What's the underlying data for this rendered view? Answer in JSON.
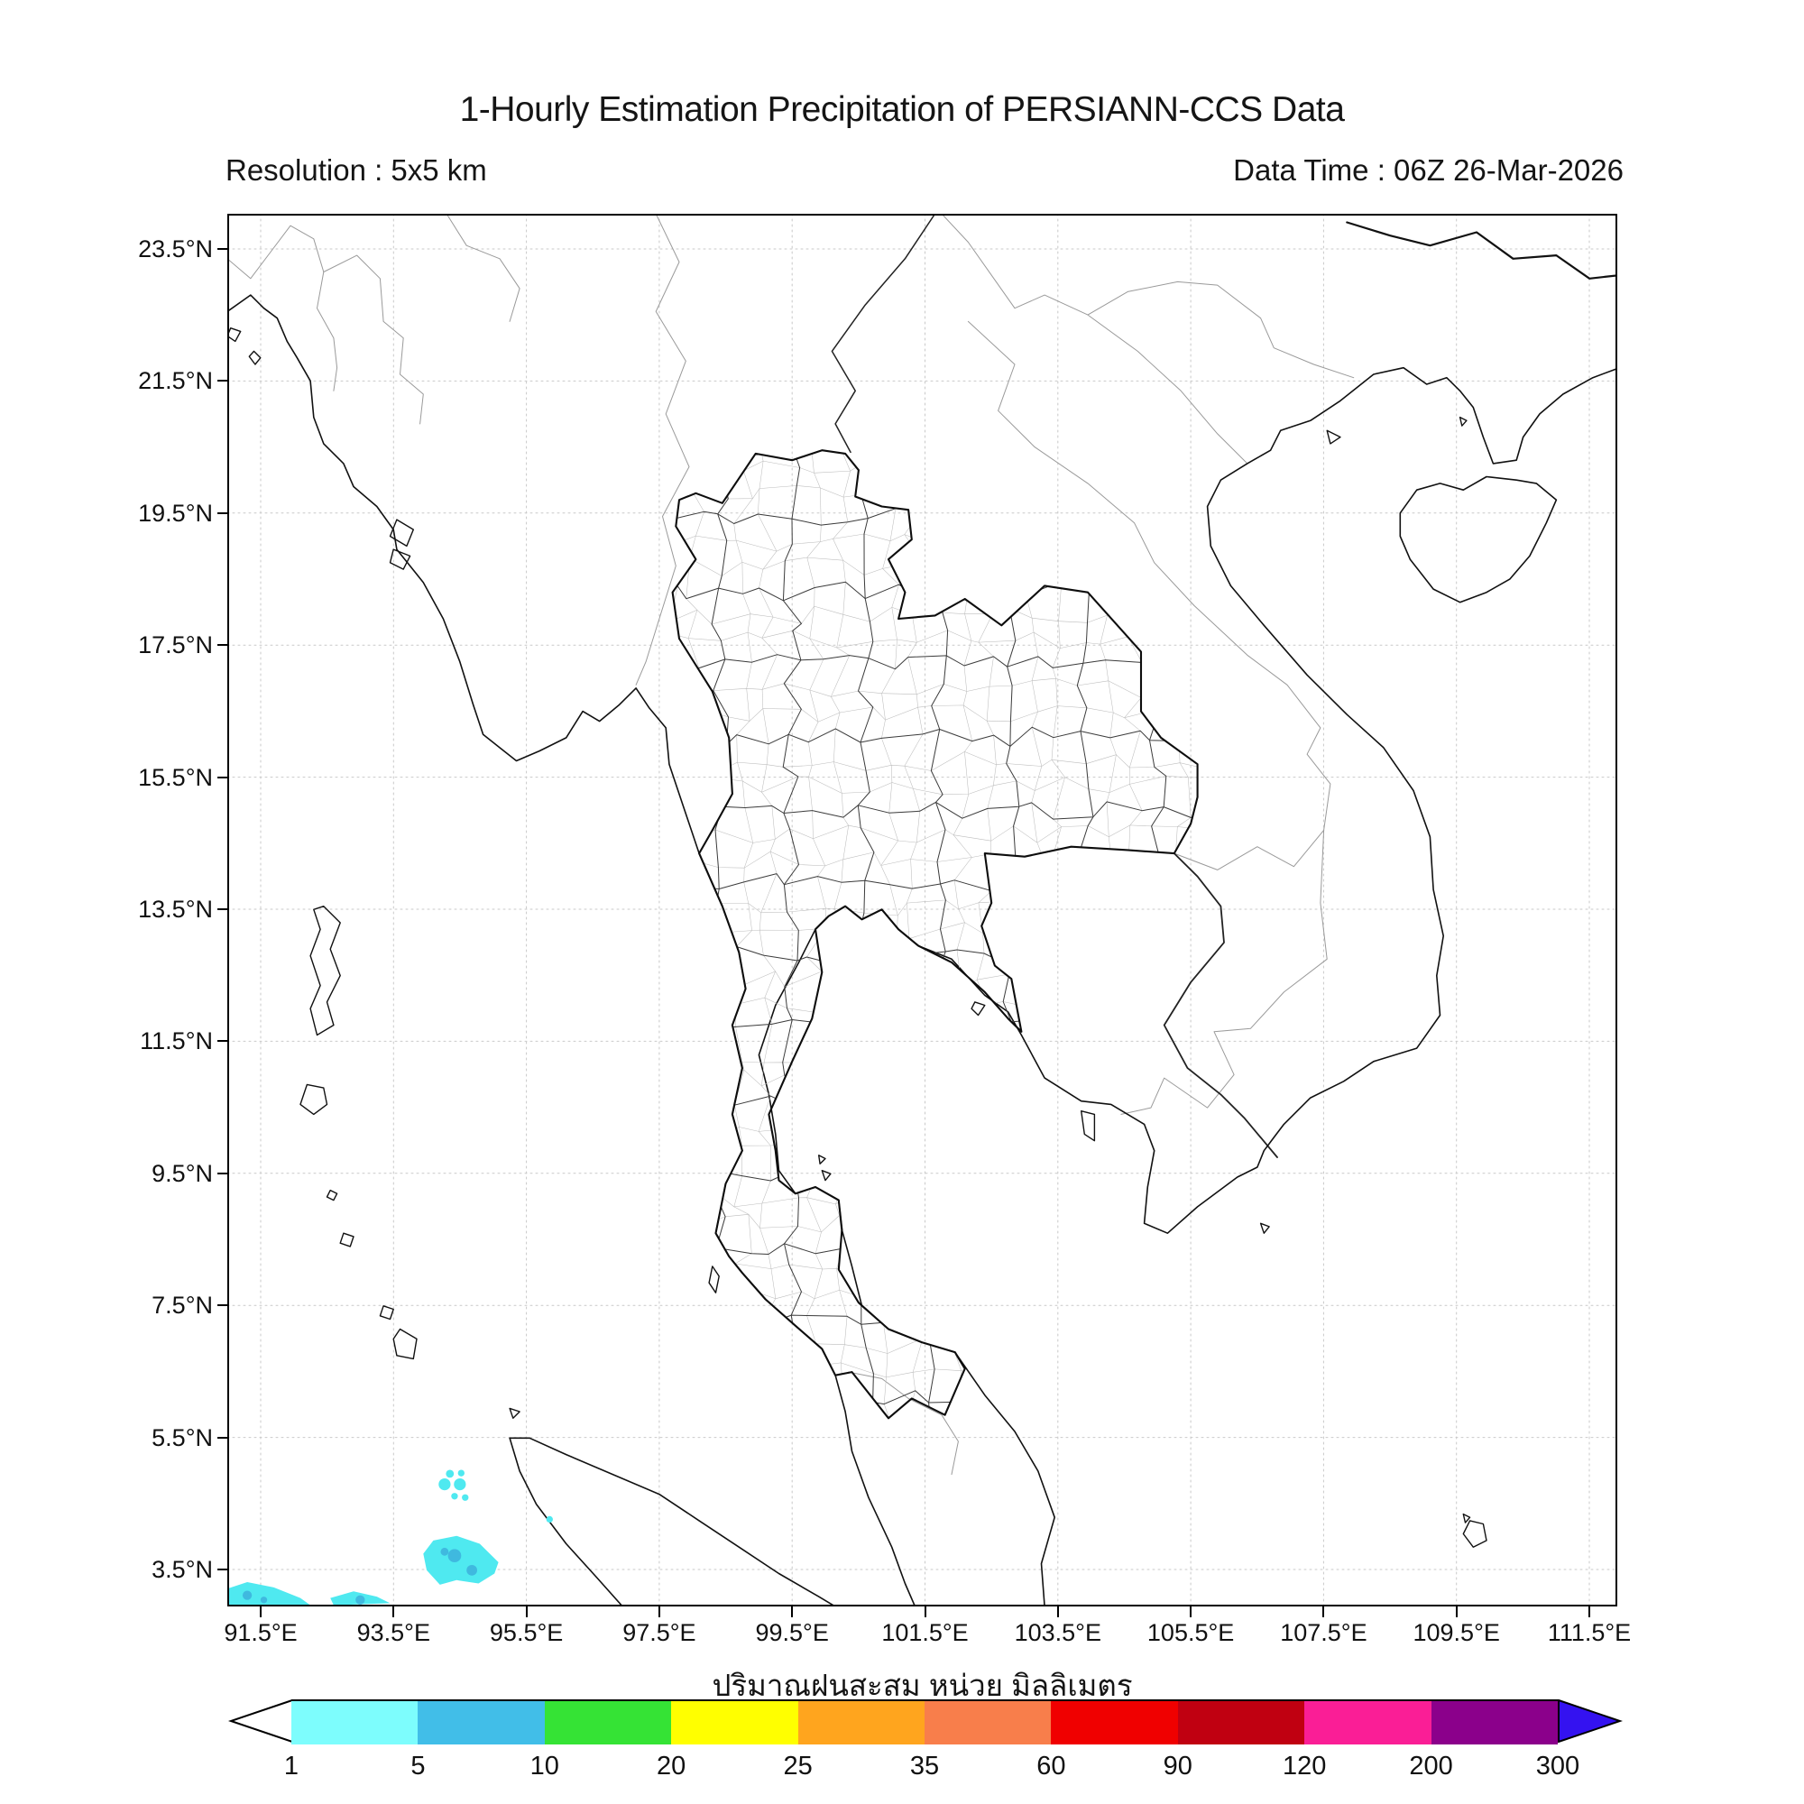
{
  "header": {
    "title": "1-Hourly Estimation Precipitation of PERSIANN-CCS Data",
    "resolution_label": "Resolution : 5x5 km",
    "datatime_label": "Data Time : 06Z 26-Mar-2026"
  },
  "map": {
    "y_axis_ticks": [
      "23.5°N",
      "21.5°N",
      "19.5°N",
      "17.5°N",
      "15.5°N",
      "13.5°N",
      "11.5°N",
      "9.5°N",
      "7.5°N",
      "5.5°N",
      "3.5°N"
    ],
    "x_axis_ticks": [
      "91.5°E",
      "93.5°E",
      "95.5°E",
      "97.5°E",
      "99.5°E",
      "101.5°E",
      "103.5°E",
      "105.5°E",
      "107.5°E",
      "109.5°E",
      "111.5°E"
    ],
    "grid": "on"
  },
  "colorbar": {
    "axis_title_thai": "ปริมาณฝนสะสม หน่วย มิลลิเมตร",
    "tick_labels": [
      "1",
      "5",
      "10",
      "20",
      "25",
      "35",
      "60",
      "90",
      "120",
      "200",
      "300"
    ],
    "segment_colors": [
      "#7DFDFD",
      "#41BEE8",
      "#35E335",
      "#FFFF00",
      "#FFA51E",
      "#F87E4B",
      "#F00000",
      "#C00011",
      "#FA1E96",
      "#8B008B"
    ],
    "under_arrow_color": "#FFFFFF",
    "over_arrow_color": "#3412F0"
  },
  "chart_data": {
    "type": "map",
    "title": "1-Hourly Estimation Precipitation of PERSIANN-CCS Data",
    "lon_range": [
      91.0,
      111.9
    ],
    "lat_range": [
      2.95,
      24.03
    ],
    "units": "mm",
    "legend_bins": [
      1,
      5,
      10,
      20,
      25,
      35,
      60,
      90,
      120,
      200,
      300
    ],
    "patch_colors": {
      "light": "#4FE9F0",
      "medium": "#3FB9DF"
    },
    "precipitation_patches": [
      {
        "id": "aceh-west-blob",
        "bin": "1-5",
        "kind": "polygon",
        "color": "light",
        "points": [
          [
            93.95,
            3.75
          ],
          [
            94.1,
            3.95
          ],
          [
            94.45,
            4.02
          ],
          [
            94.8,
            3.9
          ],
          [
            95.08,
            3.62
          ],
          [
            95.02,
            3.45
          ],
          [
            94.78,
            3.3
          ],
          [
            94.45,
            3.35
          ],
          [
            94.2,
            3.28
          ],
          [
            94.0,
            3.5
          ]
        ]
      },
      {
        "id": "aceh-west-core1",
        "bin": "5-10",
        "kind": "dot",
        "color": "medium",
        "lon": 94.42,
        "lat": 3.72,
        "r": 0.1
      },
      {
        "id": "aceh-west-core2",
        "bin": "5-10",
        "kind": "dot",
        "color": "medium",
        "lon": 94.27,
        "lat": 3.78,
        "r": 0.06
      },
      {
        "id": "aceh-west-core3",
        "bin": "5-10",
        "kind": "dot",
        "color": "medium",
        "lon": 94.68,
        "lat": 3.5,
        "r": 0.08
      },
      {
        "id": "aceh-dots-1",
        "bin": "1-5",
        "kind": "dot",
        "color": "light",
        "lon": 94.35,
        "lat": 4.96,
        "r": 0.06
      },
      {
        "id": "aceh-dots-2",
        "bin": "1-5",
        "kind": "dot",
        "color": "light",
        "lon": 94.52,
        "lat": 4.97,
        "r": 0.05
      },
      {
        "id": "aceh-dots-3",
        "bin": "1-5",
        "kind": "dot",
        "color": "light",
        "lon": 94.27,
        "lat": 4.8,
        "r": 0.09
      },
      {
        "id": "aceh-dots-4",
        "bin": "1-5",
        "kind": "dot",
        "color": "light",
        "lon": 94.5,
        "lat": 4.8,
        "r": 0.09
      },
      {
        "id": "aceh-dots-5",
        "bin": "1-5",
        "kind": "dot",
        "color": "light",
        "lon": 94.42,
        "lat": 4.62,
        "r": 0.05
      },
      {
        "id": "aceh-dots-6",
        "bin": "1-5",
        "kind": "dot",
        "color": "light",
        "lon": 94.58,
        "lat": 4.6,
        "r": 0.05
      },
      {
        "id": "aceh-dot-east",
        "bin": "1-5",
        "kind": "dot",
        "color": "light",
        "lon": 95.85,
        "lat": 4.27,
        "r": 0.05
      },
      {
        "id": "sw-corner-streak",
        "bin": "1-5",
        "kind": "polygon",
        "color": "light",
        "points": [
          [
            91.0,
            3.22
          ],
          [
            91.3,
            3.32
          ],
          [
            91.7,
            3.24
          ],
          [
            92.1,
            3.08
          ],
          [
            92.25,
            2.97
          ],
          [
            91.0,
            2.97
          ]
        ]
      },
      {
        "id": "sw-corner-core1",
        "bin": "5-10",
        "kind": "dot",
        "color": "medium",
        "lon": 91.3,
        "lat": 3.12,
        "r": 0.07
      },
      {
        "id": "sw-corner-core2",
        "bin": "5-10",
        "kind": "dot",
        "color": "medium",
        "lon": 91.55,
        "lat": 3.05,
        "r": 0.05
      },
      {
        "id": "south-streak-2",
        "bin": "1-5",
        "kind": "polygon",
        "color": "light",
        "points": [
          [
            92.55,
            3.08
          ],
          [
            92.9,
            3.18
          ],
          [
            93.25,
            3.1
          ],
          [
            93.45,
            3.0
          ],
          [
            92.6,
            2.97
          ]
        ]
      },
      {
        "id": "south-streak-2-core",
        "bin": "5-10",
        "kind": "dot",
        "color": "medium",
        "lon": 93.0,
        "lat": 3.05,
        "r": 0.07
      }
    ]
  }
}
